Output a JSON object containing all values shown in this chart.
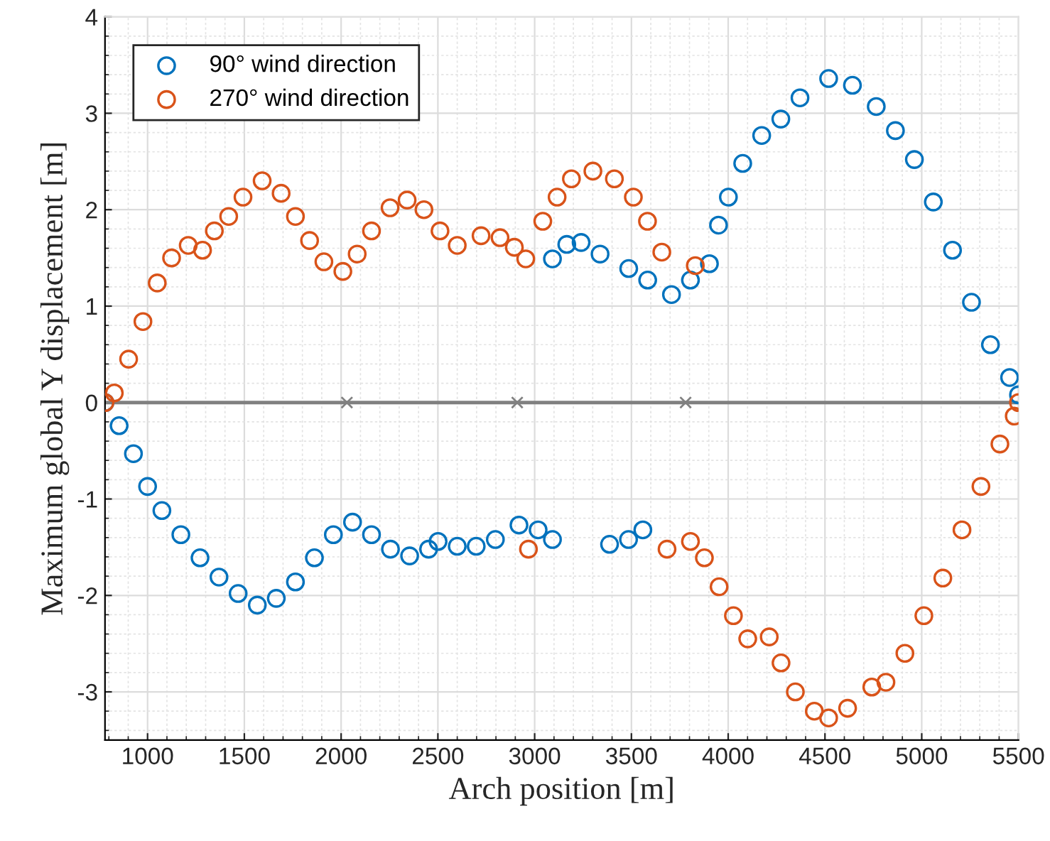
{
  "chart_data": {
    "type": "scatter",
    "xlabel": "Arch position [m]",
    "ylabel": "Maximum global Y displacement [m]",
    "xlim": [
      780,
      5500
    ],
    "ylim": [
      -3.5,
      4
    ],
    "xticks": [
      1000,
      1500,
      2000,
      2500,
      3000,
      3500,
      4000,
      4500,
      5000,
      5500
    ],
    "yticks": [
      -3,
      -2,
      -1,
      0,
      1,
      2,
      3,
      4
    ],
    "grid": true,
    "legend": "top left",
    "marker": "circle",
    "ref_lines": [
      {
        "axis": "y",
        "value": 0,
        "color": "#808080"
      }
    ],
    "series": [
      {
        "name": "90° wind direction",
        "color": "#0072bd",
        "x": [
          780,
          853,
          927,
          1000,
          1074,
          1172,
          1271,
          1369,
          1468,
          1567,
          1665,
          1764,
          1862,
          1960,
          2059,
          2157,
          2255,
          2354,
          2452,
          2501,
          2600,
          2698,
          2797,
          2919,
          3018,
          3092,
          3387,
          3485,
          3559,
          3092,
          3166,
          3240,
          3338,
          3486,
          3584,
          3707,
          3805,
          3903,
          3950,
          4001,
          4075,
          4173,
          4272,
          4371,
          4519,
          4642,
          4765,
          4864,
          4962,
          5060,
          5159,
          5257,
          5355,
          5454,
          5500
        ],
        "values": [
          0,
          -0.24,
          -0.53,
          -0.87,
          -1.12,
          -1.37,
          -1.61,
          -1.81,
          -1.98,
          -2.1,
          -2.03,
          -1.86,
          -1.61,
          -1.37,
          -1.24,
          -1.37,
          -1.52,
          -1.59,
          -1.52,
          -1.44,
          -1.49,
          -1.49,
          -1.42,
          -1.27,
          -1.32,
          -1.42,
          -1.47,
          -1.42,
          -1.32,
          1.49,
          1.64,
          1.66,
          1.54,
          1.39,
          1.27,
          1.12,
          1.27,
          1.44,
          1.84,
          2.13,
          2.48,
          2.77,
          2.94,
          3.16,
          3.36,
          3.29,
          3.07,
          2.82,
          2.52,
          2.08,
          1.58,
          1.04,
          0.6,
          0.26,
          0.08
        ]
      },
      {
        "name": "270° wind direction",
        "color": "#d95319",
        "x": [
          780,
          828,
          902,
          976,
          1050,
          1124,
          1210,
          1284,
          1345,
          1419,
          1493,
          1592,
          1690,
          1764,
          1837,
          1911,
          2009,
          2083,
          2157,
          2253,
          2341,
          2428,
          2511,
          2600,
          2723,
          2821,
          2895,
          2954,
          3042,
          3116,
          3190,
          3301,
          3412,
          3510,
          3583,
          3657,
          3830,
          2968,
          3684,
          3805,
          3877,
          3953,
          4027,
          4101,
          4212,
          4273,
          4347,
          4445,
          4519,
          4617,
          4742,
          4815,
          4913,
          5011,
          5109,
          5208,
          5306,
          5404,
          5478,
          5500
        ],
        "values": [
          0,
          0.1,
          0.45,
          0.84,
          1.24,
          1.5,
          1.63,
          1.58,
          1.78,
          1.93,
          2.13,
          2.3,
          2.17,
          1.93,
          1.68,
          1.46,
          1.36,
          1.54,
          1.78,
          2.02,
          2.1,
          2.0,
          1.78,
          1.63,
          1.73,
          1.71,
          1.61,
          1.49,
          1.88,
          2.13,
          2.32,
          2.4,
          2.32,
          2.13,
          1.88,
          1.56,
          1.42,
          -1.52,
          -1.52,
          -1.44,
          -1.61,
          -1.91,
          -2.21,
          -2.45,
          -2.43,
          -2.7,
          -3.0,
          -3.2,
          -3.27,
          -3.17,
          -2.95,
          -2.9,
          -2.6,
          -2.21,
          -1.82,
          -1.32,
          -0.87,
          -0.43,
          -0.14,
          0
        ]
      },
      {
        "color": "#808080",
        "marker": "cross",
        "x": [
          2030,
          2910,
          3780
        ],
        "values": [
          0,
          0,
          0
        ]
      }
    ]
  }
}
